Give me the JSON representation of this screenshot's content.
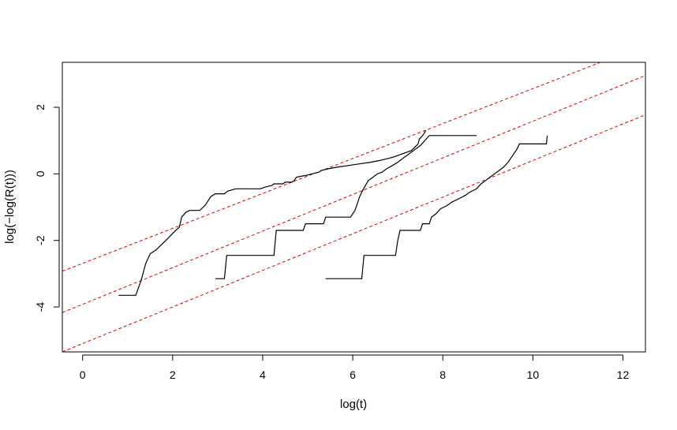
{
  "chart_data": {
    "type": "line",
    "title": "",
    "xlabel": "log(t)",
    "ylabel": "log(−log(R(t)))",
    "xlim": [
      -0.45,
      12.5
    ],
    "ylim": [
      -5.35,
      3.35
    ],
    "xticks": [
      "0",
      "2",
      "4",
      "6",
      "8",
      "10",
      "12"
    ],
    "yticks": [
      "-4",
      "-2",
      "0",
      "2"
    ],
    "grid": false,
    "legend": "none",
    "colors": {
      "series": "#000000",
      "reference_lines": "#dd0000"
    },
    "series": [
      {
        "values": [
          [
            0.8,
            -3.65
          ],
          [
            1.18,
            -3.65
          ],
          [
            1.3,
            -3.2
          ],
          [
            1.4,
            -2.7
          ],
          [
            1.5,
            -2.4
          ],
          [
            1.62,
            -2.3
          ],
          [
            1.85,
            -2.0
          ],
          [
            2.05,
            -1.72
          ],
          [
            2.15,
            -1.6
          ],
          [
            2.2,
            -1.3
          ],
          [
            2.3,
            -1.15
          ],
          [
            2.38,
            -1.1
          ],
          [
            2.48,
            -1.1
          ],
          [
            2.6,
            -1.1
          ],
          [
            2.72,
            -0.95
          ],
          [
            2.85,
            -0.68
          ],
          [
            2.95,
            -0.6
          ],
          [
            3.15,
            -0.6
          ],
          [
            3.22,
            -0.52
          ],
          [
            3.4,
            -0.45
          ],
          [
            3.95,
            -0.45
          ],
          [
            4.05,
            -0.4
          ],
          [
            4.2,
            -0.35
          ],
          [
            4.25,
            -0.3
          ],
          [
            4.45,
            -0.3
          ],
          [
            4.5,
            -0.25
          ],
          [
            4.65,
            -0.25
          ],
          [
            4.7,
            -0.2
          ],
          [
            4.75,
            -0.1
          ],
          [
            4.95,
            -0.05
          ],
          [
            5.1,
            0.0
          ],
          [
            5.25,
            0.05
          ],
          [
            5.3,
            0.1
          ],
          [
            5.45,
            0.15
          ],
          [
            5.65,
            0.2
          ],
          [
            5.9,
            0.25
          ],
          [
            6.15,
            0.3
          ],
          [
            6.4,
            0.35
          ],
          [
            6.6,
            0.4
          ],
          [
            6.75,
            0.45
          ],
          [
            6.9,
            0.5
          ],
          [
            7.0,
            0.55
          ],
          [
            7.1,
            0.6
          ],
          [
            7.2,
            0.65
          ],
          [
            7.3,
            0.7
          ],
          [
            7.38,
            0.8
          ],
          [
            7.45,
            0.9
          ],
          [
            7.48,
            1.05
          ],
          [
            7.52,
            1.1
          ],
          [
            7.58,
            1.2
          ],
          [
            7.62,
            1.3
          ]
        ]
      },
      {
        "values": [
          [
            2.95,
            -3.15
          ],
          [
            3.15,
            -3.15
          ],
          [
            3.2,
            -2.45
          ],
          [
            4.25,
            -2.45
          ],
          [
            4.3,
            -1.7
          ],
          [
            4.9,
            -1.7
          ],
          [
            4.95,
            -1.5
          ],
          [
            5.35,
            -1.5
          ],
          [
            5.4,
            -1.3
          ],
          [
            5.95,
            -1.3
          ],
          [
            6.0,
            -1.2
          ],
          [
            6.05,
            -1.1
          ],
          [
            6.1,
            -0.9
          ],
          [
            6.15,
            -0.7
          ],
          [
            6.2,
            -0.55
          ],
          [
            6.28,
            -0.35
          ],
          [
            6.35,
            -0.2
          ],
          [
            6.45,
            -0.1
          ],
          [
            6.55,
            0.0
          ],
          [
            6.65,
            0.05
          ],
          [
            6.75,
            0.15
          ],
          [
            6.88,
            0.25
          ],
          [
            7.0,
            0.35
          ],
          [
            7.1,
            0.45
          ],
          [
            7.2,
            0.55
          ],
          [
            7.3,
            0.65
          ],
          [
            7.4,
            0.75
          ],
          [
            7.5,
            0.85
          ],
          [
            7.6,
            1.0
          ],
          [
            7.7,
            1.15
          ],
          [
            8.75,
            1.15
          ]
        ]
      },
      {
        "values": [
          [
            5.4,
            -3.15
          ],
          [
            6.2,
            -3.15
          ],
          [
            6.25,
            -2.45
          ],
          [
            6.95,
            -2.45
          ],
          [
            7.0,
            -2.0
          ],
          [
            7.05,
            -1.7
          ],
          [
            7.5,
            -1.7
          ],
          [
            7.55,
            -1.5
          ],
          [
            7.7,
            -1.5
          ],
          [
            7.75,
            -1.3
          ],
          [
            7.85,
            -1.2
          ],
          [
            7.95,
            -1.05
          ],
          [
            8.1,
            -0.95
          ],
          [
            8.2,
            -0.85
          ],
          [
            8.35,
            -0.75
          ],
          [
            8.5,
            -0.65
          ],
          [
            8.6,
            -0.55
          ],
          [
            8.75,
            -0.45
          ],
          [
            8.85,
            -0.3
          ],
          [
            8.95,
            -0.2
          ],
          [
            9.05,
            -0.1
          ],
          [
            9.15,
            0.0
          ],
          [
            9.25,
            0.1
          ],
          [
            9.35,
            0.2
          ],
          [
            9.45,
            0.35
          ],
          [
            9.55,
            0.55
          ],
          [
            9.65,
            0.75
          ],
          [
            9.7,
            0.9
          ],
          [
            10.3,
            0.9
          ],
          [
            10.32,
            1.15
          ]
        ]
      }
    ],
    "reference_lines": [
      {
        "intercept": -2.69,
        "slope": 0.525
      },
      {
        "intercept": -3.92,
        "slope": 0.55
      },
      {
        "intercept": -5.1,
        "slope": 0.55
      }
    ]
  }
}
